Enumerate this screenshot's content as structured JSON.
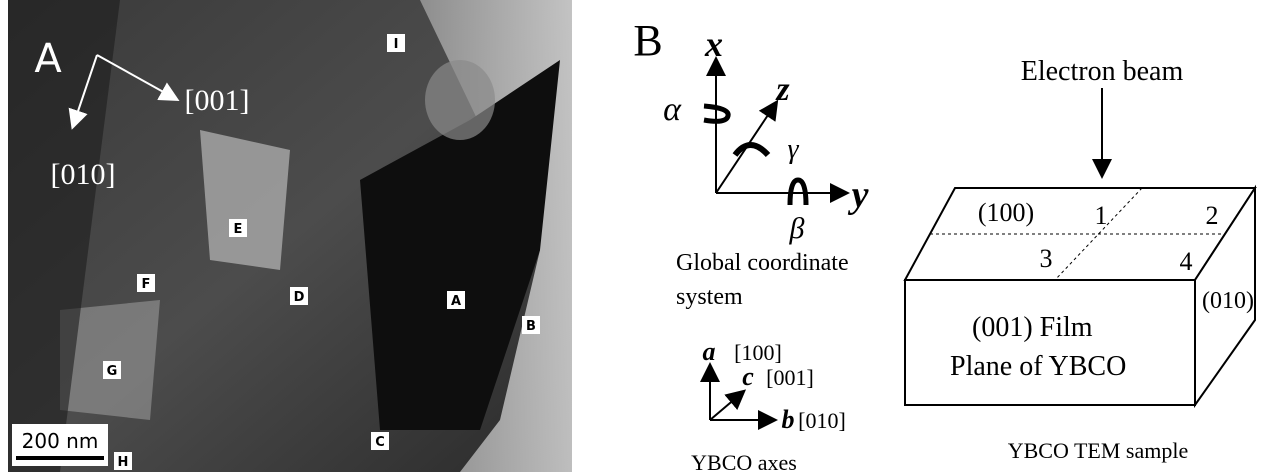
{
  "panel_a": {
    "label": "A",
    "directions": [
      "[001]",
      "[010]"
    ],
    "regions": [
      "I",
      "E",
      "F",
      "D",
      "A",
      "B",
      "G",
      "C",
      "H"
    ],
    "scale_bar": "200 nm"
  },
  "panel_b": {
    "label": "B",
    "global_axes": {
      "x": "x",
      "z": "z",
      "y": "y",
      "alpha": "α",
      "gamma": "γ",
      "beta": "β"
    },
    "global_caption": [
      "Global coordinate",
      "system"
    ],
    "ybco_axes": {
      "a": "a",
      "a_index": "[100]",
      "c": "c",
      "c_index": "[001]",
      "b": "b",
      "b_index": "[010]"
    },
    "ybco_caption": "YBCO axes",
    "sample": {
      "beam": "Electron beam",
      "top_face": "(100)",
      "quadrants": [
        "1",
        "2",
        "3",
        "4"
      ],
      "side_face": "(010)",
      "front_face": [
        "(001) Film",
        "Plane of YBCO"
      ]
    },
    "sample_caption": "YBCO TEM sample"
  }
}
